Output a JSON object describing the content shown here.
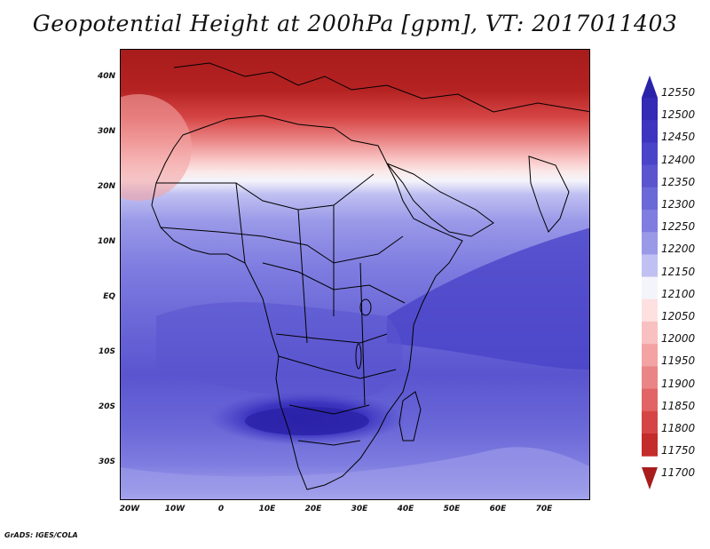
{
  "title": "Geopotential Height at 200hPa [gpm], VT: 2017011403",
  "map": {
    "lat_labels": [
      "40N",
      "30N",
      "20N",
      "10N",
      "EQ",
      "10S",
      "20S",
      "30S"
    ],
    "lon_labels": [
      "20W",
      "10W",
      "0",
      "10E",
      "20E",
      "30E",
      "40E",
      "50E",
      "60E",
      "70E"
    ]
  },
  "colorbar": {
    "labels": [
      "12550",
      "12500",
      "12450",
      "12400",
      "12350",
      "12300",
      "12250",
      "12200",
      "12150",
      "12100",
      "12050",
      "12000",
      "11950",
      "11900",
      "11850",
      "11800",
      "11750",
      "11700"
    ],
    "colors": [
      "#2a22a8",
      "#332ab5",
      "#3d35c0",
      "#4a44c8",
      "#5a55cf",
      "#6b68d8",
      "#7f7de0",
      "#9a99e8",
      "#c0c0f2",
      "#f4f4fb",
      "#fde0e0",
      "#f8c0c0",
      "#f3a3a3",
      "#ea8585",
      "#e26565",
      "#d64545",
      "#c42b2b",
      "#a81c1c"
    ]
  },
  "credit": "GrADS: IGES/COLA"
}
